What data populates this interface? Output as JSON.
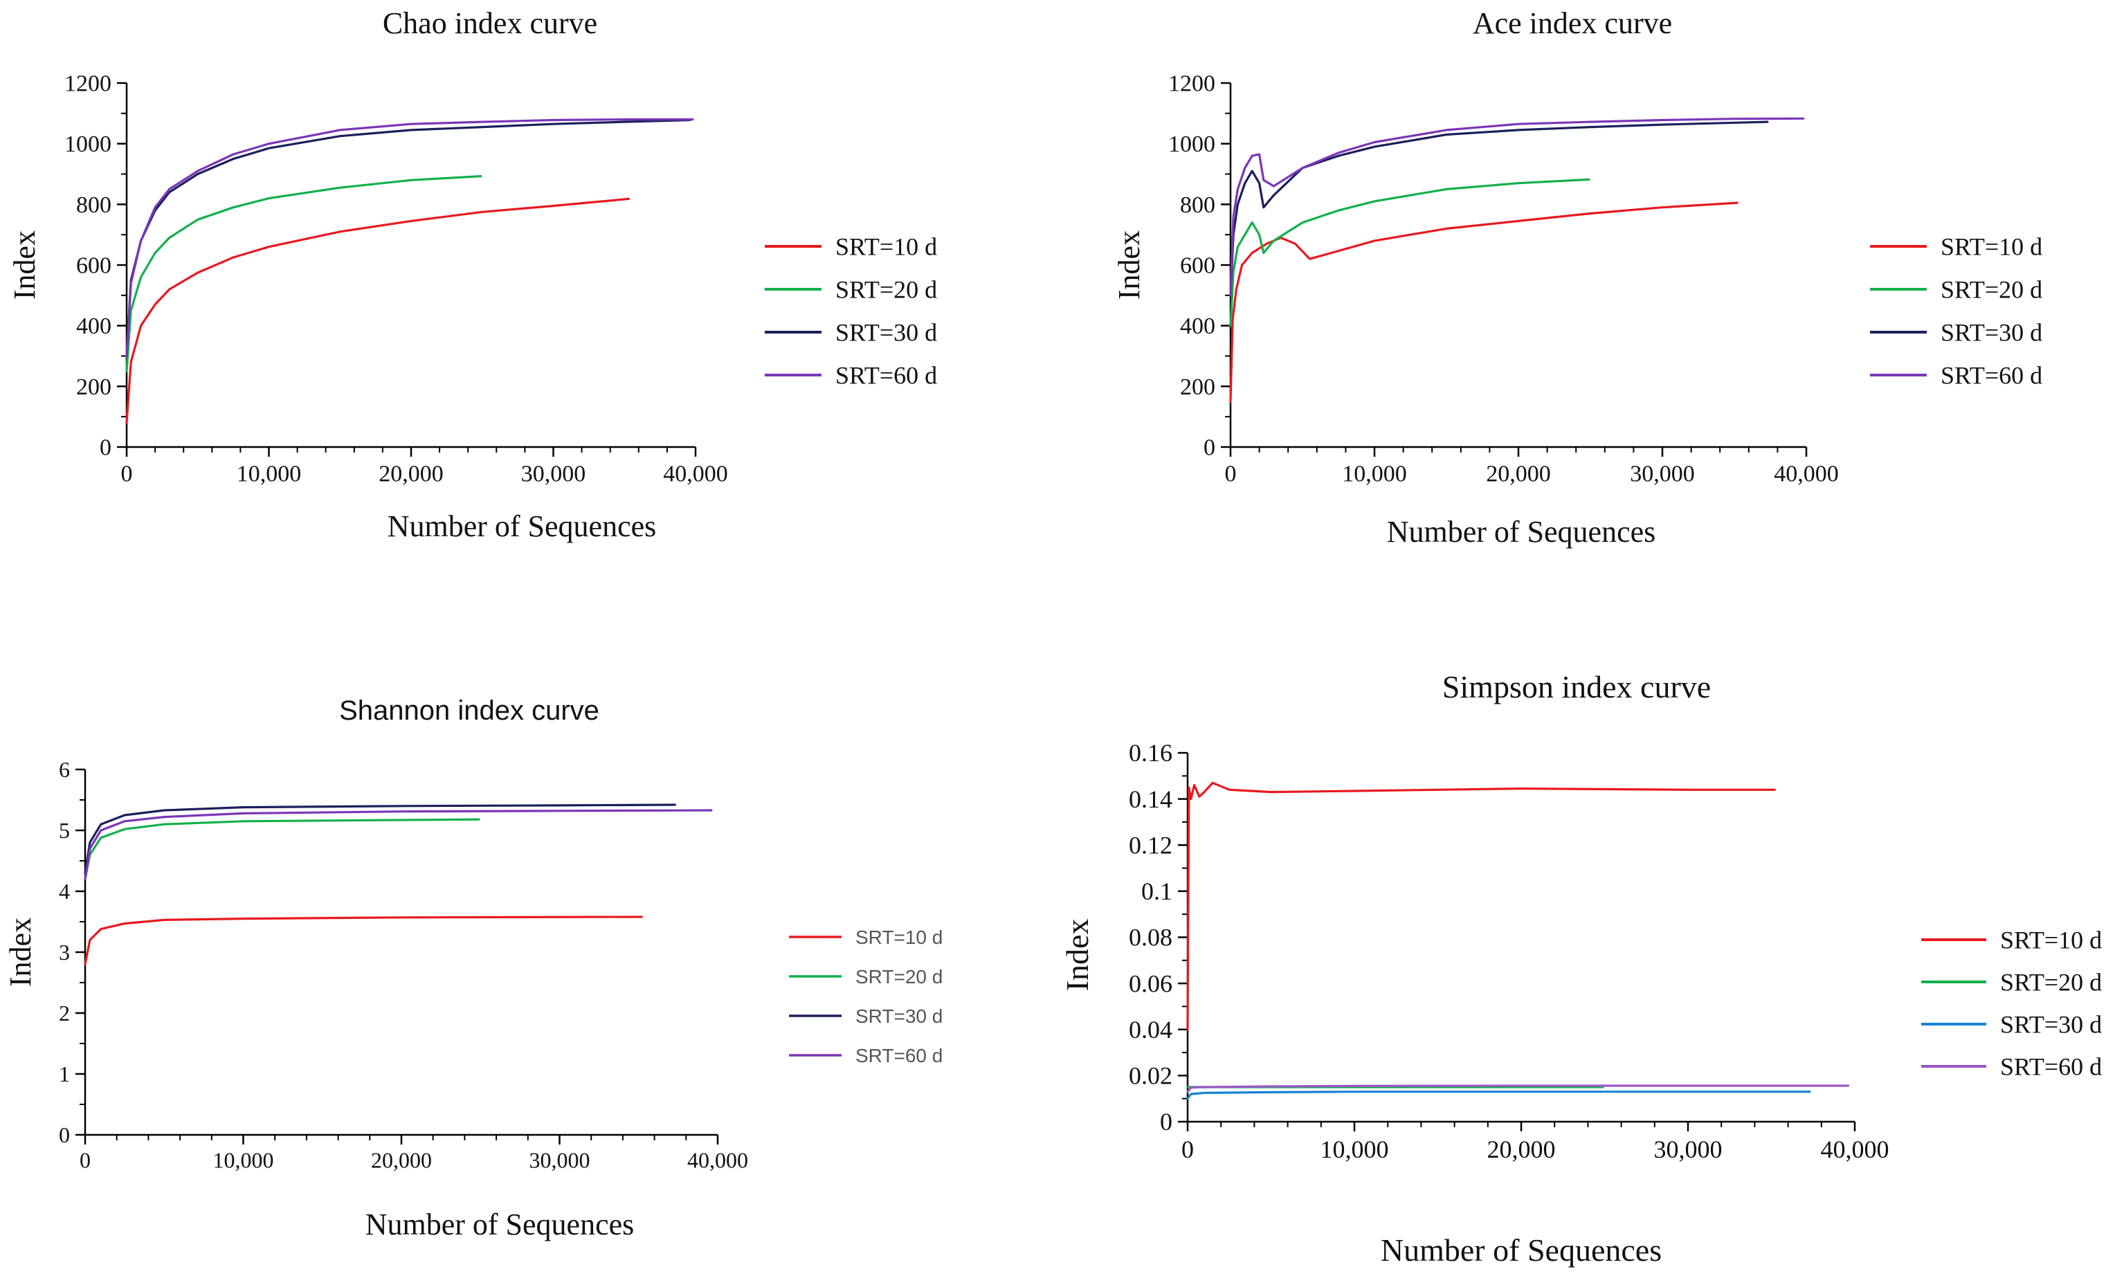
{
  "figure": {
    "panels": [
      {
        "id": "chao",
        "title": "Chao index curve",
        "xlabel": "Number of Sequences",
        "ylabel": "Index",
        "legend": [
          {
            "label": "SRT=10 d",
            "color": "#e8191f"
          },
          {
            "label": "SRT=20 d",
            "color": "#13b04b"
          },
          {
            "label": "SRT=30 d",
            "color": "#1b1f5c"
          },
          {
            "label": "SRT=60 d",
            "color": "#7b35b8"
          }
        ]
      },
      {
        "id": "ace",
        "title": "Ace index curve",
        "xlabel": "Number of Sequences",
        "ylabel": "Index",
        "legend": [
          {
            "label": "SRT=10 d",
            "color": "#e8191f"
          },
          {
            "label": "SRT=20 d",
            "color": "#13b04b"
          },
          {
            "label": "SRT=30 d",
            "color": "#1b1f5c"
          },
          {
            "label": "SRT=60 d",
            "color": "#7b35b8"
          }
        ]
      },
      {
        "id": "shannon",
        "title": "Shannon index curve",
        "xlabel": "Number of Sequences",
        "ylabel": "Index",
        "legend": [
          {
            "label": "SRT=10 d",
            "color": "#e8191f"
          },
          {
            "label": "SRT=20 d",
            "color": "#13b04b"
          },
          {
            "label": "SRT=30 d",
            "color": "#1b1f5c"
          },
          {
            "label": "SRT=60 d",
            "color": "#7b35b8"
          }
        ]
      },
      {
        "id": "simpson",
        "title": "Simpson index curve",
        "xlabel": "Number of Sequences",
        "ylabel": "Index",
        "legend": [
          {
            "label": "SRT=10 d",
            "color": "#e8191f"
          },
          {
            "label": "SRT=20 d",
            "color": "#13b04b"
          },
          {
            "label": "SRT=30 d",
            "color": "#1683d6"
          },
          {
            "label": "SRT=60 d",
            "color": "#9b56c9"
          }
        ]
      }
    ]
  },
  "chart_data": [
    {
      "type": "line",
      "title": "Chao index curve",
      "xlabel": "Number of Sequences",
      "ylabel": "Index",
      "xlim": [
        0,
        40000
      ],
      "ylim": [
        0,
        1200
      ],
      "xticks": [
        0,
        10000,
        20000,
        30000,
        40000
      ],
      "xtick_labels": [
        "0",
        "10,000",
        "20,000",
        "30,000",
        "40,000"
      ],
      "yticks": [
        0,
        200,
        400,
        600,
        800,
        1000,
        1200
      ],
      "ytick_labels": [
        "0",
        "200",
        "400",
        "600",
        "800",
        "1000",
        "1200"
      ],
      "series": [
        {
          "name": "SRT=10 d",
          "color": "#e8191f",
          "x": [
            0,
            300,
            1000,
            2000,
            3000,
            5000,
            7500,
            10000,
            15000,
            20000,
            25000,
            30000,
            35300
          ],
          "y": [
            80,
            280,
            400,
            470,
            520,
            575,
            625,
            660,
            710,
            745,
            775,
            795,
            818
          ]
        },
        {
          "name": "SRT=20 d",
          "color": "#13b04b",
          "x": [
            0,
            300,
            1000,
            2000,
            3000,
            5000,
            7500,
            10000,
            15000,
            20000,
            24900
          ],
          "y": [
            250,
            450,
            560,
            640,
            690,
            750,
            790,
            820,
            855,
            880,
            893
          ]
        },
        {
          "name": "SRT=30 d",
          "color": "#1b1f5c",
          "x": [
            0,
            300,
            1000,
            2000,
            3000,
            5000,
            7500,
            10000,
            15000,
            20000,
            25000,
            30000,
            35000,
            39600
          ],
          "y": [
            300,
            550,
            680,
            780,
            840,
            900,
            950,
            985,
            1025,
            1045,
            1055,
            1065,
            1072,
            1078
          ]
        },
        {
          "name": "SRT=60 d",
          "color": "#7b35b8",
          "x": [
            0,
            300,
            1000,
            2000,
            3000,
            5000,
            7500,
            10000,
            15000,
            20000,
            25000,
            30000,
            35000,
            39800
          ],
          "y": [
            300,
            540,
            680,
            790,
            850,
            910,
            965,
            1000,
            1045,
            1065,
            1072,
            1078,
            1080,
            1080
          ]
        }
      ]
    },
    {
      "type": "line",
      "title": "Ace index curve",
      "xlabel": "Number of Sequences",
      "ylabel": "Index",
      "xlim": [
        0,
        40000
      ],
      "ylim": [
        0,
        1200
      ],
      "xticks": [
        0,
        10000,
        20000,
        30000,
        40000
      ],
      "xtick_labels": [
        "0",
        "10,000",
        "20,000",
        "30,000",
        "40,000"
      ],
      "yticks": [
        0,
        200,
        400,
        600,
        800,
        1000,
        1200
      ],
      "ytick_labels": [
        "0",
        "200",
        "400",
        "600",
        "800",
        "1000",
        "1200"
      ],
      "series": [
        {
          "name": "SRT=10 d",
          "color": "#e8191f",
          "x": [
            0,
            150,
            400,
            800,
            1500,
            2500,
            3500,
            4500,
            5500,
            7000,
            10000,
            15000,
            20000,
            25000,
            30000,
            35200
          ],
          "y": [
            150,
            420,
            520,
            600,
            640,
            670,
            690,
            670,
            620,
            640,
            680,
            720,
            745,
            770,
            790,
            805
          ]
        },
        {
          "name": "SRT=20 d",
          "color": "#13b04b",
          "x": [
            0,
            200,
            500,
            1000,
            1500,
            2000,
            2300,
            3000,
            5000,
            7500,
            10000,
            15000,
            20000,
            24900
          ],
          "y": [
            400,
            580,
            660,
            700,
            740,
            700,
            640,
            680,
            740,
            780,
            810,
            850,
            870,
            882
          ]
        },
        {
          "name": "SRT=30 d",
          "color": "#1b1f5c",
          "x": [
            0,
            200,
            500,
            1000,
            1500,
            2000,
            2300,
            3000,
            5000,
            7500,
            10000,
            15000,
            20000,
            25000,
            30000,
            37300
          ],
          "y": [
            500,
            700,
            800,
            870,
            910,
            870,
            790,
            830,
            920,
            960,
            990,
            1030,
            1045,
            1055,
            1063,
            1072
          ]
        },
        {
          "name": "SRT=60 d",
          "color": "#7b35b8",
          "x": [
            0,
            200,
            500,
            1000,
            1500,
            2000,
            2300,
            3000,
            5000,
            7500,
            10000,
            15000,
            20000,
            25000,
            30000,
            35000,
            39800
          ],
          "y": [
            500,
            760,
            850,
            920,
            960,
            965,
            880,
            860,
            920,
            970,
            1005,
            1045,
            1065,
            1072,
            1078,
            1082,
            1083
          ]
        }
      ]
    },
    {
      "type": "line",
      "title": "Shannon index curve",
      "xlabel": "Number of Sequences",
      "ylabel": "Index",
      "xlim": [
        0,
        40000
      ],
      "ylim": [
        0,
        6
      ],
      "xticks": [
        0,
        10000,
        20000,
        30000,
        40000
      ],
      "xtick_labels": [
        "0",
        "10,000",
        "20,000",
        "30,000",
        "40,000"
      ],
      "yticks": [
        0,
        1,
        2,
        3,
        4,
        5,
        6
      ],
      "ytick_labels": [
        "0",
        "1",
        "2",
        "3",
        "4",
        "5",
        "6"
      ],
      "series": [
        {
          "name": "SRT=10 d",
          "color": "#e8191f",
          "x": [
            0,
            300,
            1000,
            2500,
            5000,
            10000,
            20000,
            35200
          ],
          "y": [
            2.8,
            3.2,
            3.38,
            3.47,
            3.53,
            3.55,
            3.57,
            3.58
          ]
        },
        {
          "name": "SRT=20 d",
          "color": "#13b04b",
          "x": [
            0,
            300,
            1000,
            2500,
            5000,
            10000,
            20000,
            24900
          ],
          "y": [
            4.2,
            4.6,
            4.88,
            5.02,
            5.1,
            5.15,
            5.17,
            5.18
          ]
        },
        {
          "name": "SRT=30 d",
          "color": "#1b1f5c",
          "x": [
            0,
            300,
            1000,
            2500,
            5000,
            10000,
            20000,
            30000,
            37300
          ],
          "y": [
            4.3,
            4.8,
            5.1,
            5.25,
            5.33,
            5.38,
            5.4,
            5.41,
            5.42
          ]
        },
        {
          "name": "SRT=60 d",
          "color": "#7b35b8",
          "x": [
            0,
            300,
            1000,
            2500,
            5000,
            10000,
            20000,
            30000,
            39600
          ],
          "y": [
            4.2,
            4.7,
            5.0,
            5.15,
            5.22,
            5.28,
            5.31,
            5.32,
            5.33
          ]
        }
      ]
    },
    {
      "type": "line",
      "title": "Simpson index curve",
      "xlabel": "Number of Sequences",
      "ylabel": "Index",
      "xlim": [
        0,
        40000
      ],
      "ylim": [
        0,
        0.16
      ],
      "xticks": [
        0,
        10000,
        20000,
        30000,
        40000
      ],
      "xtick_labels": [
        "0",
        "10,000",
        "20,000",
        "30,000",
        "40,000"
      ],
      "yticks": [
        0,
        0.02,
        0.04,
        0.06,
        0.08,
        0.1,
        0.12,
        0.14,
        0.16
      ],
      "ytick_labels": [
        "0",
        "0.02",
        "0.04",
        "0.06",
        "0.08",
        "0.1",
        "0.12",
        "0.14",
        "0.16"
      ],
      "series": [
        {
          "name": "SRT=10 d",
          "color": "#e8191f",
          "x": [
            0,
            40,
            80,
            200,
            400,
            700,
            1000,
            1500,
            2500,
            5000,
            10000,
            15000,
            20000,
            30000,
            35200
          ],
          "y": [
            0.04,
            0.1,
            0.145,
            0.14,
            0.146,
            0.141,
            0.143,
            0.147,
            0.144,
            0.143,
            0.1435,
            0.144,
            0.1445,
            0.144,
            0.144
          ]
        },
        {
          "name": "SRT=20 d",
          "color": "#13b04b",
          "x": [
            0,
            500,
            5000,
            24900
          ],
          "y": [
            0.015,
            0.015,
            0.015,
            0.015
          ]
        },
        {
          "name": "SRT=30 d",
          "color": "#1683d6",
          "x": [
            0,
            200,
            1000,
            5000,
            10000,
            20000,
            30000,
            37300
          ],
          "y": [
            0.01,
            0.012,
            0.0125,
            0.0128,
            0.013,
            0.013,
            0.013,
            0.013
          ]
        },
        {
          "name": "SRT=60 d",
          "color": "#9b56c9",
          "x": [
            0,
            200,
            1000,
            5000,
            10000,
            20000,
            30000,
            39600
          ],
          "y": [
            0.013,
            0.0148,
            0.015,
            0.0153,
            0.0155,
            0.0156,
            0.0156,
            0.0156
          ]
        }
      ]
    }
  ]
}
